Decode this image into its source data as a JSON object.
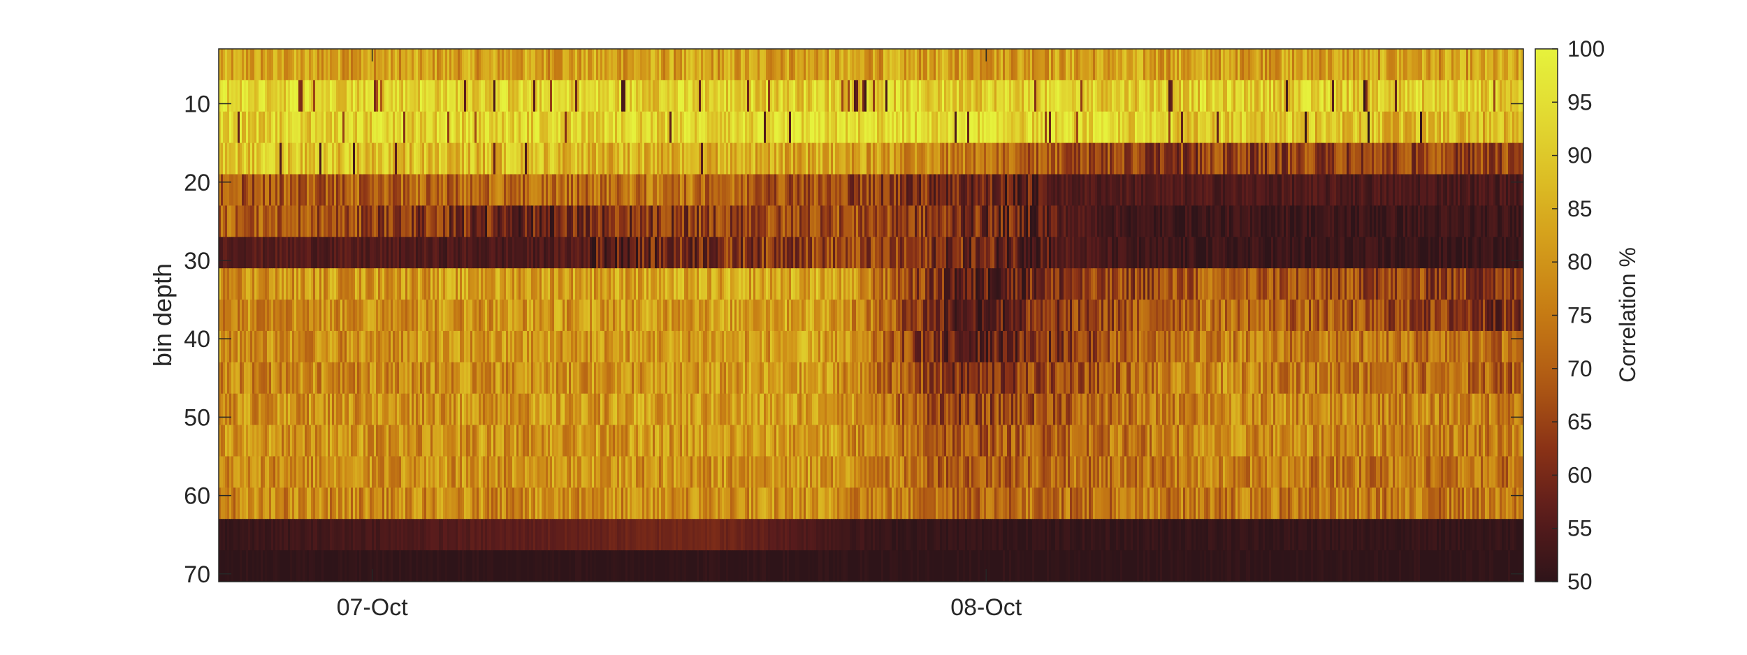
{
  "chart_data": {
    "type": "heatmap",
    "title": "",
    "xlabel": "",
    "ylabel": "bin depth",
    "x_ticks": [
      "07-Oct",
      "08-Oct"
    ],
    "x_range": [
      "06-Oct 18:00",
      "08-Oct 21:00"
    ],
    "y_range": [
      3,
      71
    ],
    "y_direction": "reversed",
    "y_ticks": [
      10,
      20,
      30,
      40,
      50,
      60,
      70
    ],
    "colorbar": {
      "label": "Correlation %",
      "range": [
        50,
        100
      ],
      "ticks": [
        50,
        55,
        60,
        65,
        70,
        75,
        80,
        85,
        90,
        95,
        100
      ],
      "colormap": [
        "#2e1419",
        "#5a1c1c",
        "#8a3216",
        "#b05a14",
        "#c57a14",
        "#d39a1a",
        "#dcbc24",
        "#e2da32",
        "#e6f23c"
      ]
    },
    "bands": [
      {
        "bins": [
          3,
          7
        ],
        "segments": [
          {
            "time": "06-Oct 18:00",
            "value": 82
          },
          {
            "time": "08-Oct 21:00",
            "value": 82
          }
        ]
      },
      {
        "bins": [
          7,
          11
        ],
        "segments": [
          {
            "time": "06-Oct 18:00",
            "value": 94
          },
          {
            "time": "07-Oct 12:00",
            "value": 92
          },
          {
            "time": "08-Oct 21:00",
            "value": 91
          }
        ]
      },
      {
        "bins": [
          11,
          15
        ],
        "segments": [
          {
            "time": "06-Oct 18:00",
            "value": 92
          },
          {
            "time": "08-Oct 00:00",
            "value": 94
          },
          {
            "time": "08-Oct 21:00",
            "value": 86
          }
        ]
      },
      {
        "bins": [
          15,
          19
        ],
        "segments": [
          {
            "time": "06-Oct 18:00",
            "value": 90
          },
          {
            "time": "07-Oct 18:00",
            "value": 84
          },
          {
            "time": "08-Oct 06:00",
            "value": 64
          },
          {
            "time": "08-Oct 21:00",
            "value": 66
          }
        ]
      },
      {
        "bins": [
          19,
          23
        ],
        "segments": [
          {
            "time": "06-Oct 18:00",
            "value": 68
          },
          {
            "time": "07-Oct 12:00",
            "value": 74
          },
          {
            "time": "08-Oct 03:00",
            "value": 55
          },
          {
            "time": "08-Oct 21:00",
            "value": 54
          }
        ]
      },
      {
        "bins": [
          23,
          27
        ],
        "segments": [
          {
            "time": "06-Oct 18:00",
            "value": 72
          },
          {
            "time": "07-Oct 06:00",
            "value": 58
          },
          {
            "time": "07-Oct 18:00",
            "value": 68
          },
          {
            "time": "08-Oct 06:00",
            "value": 52
          },
          {
            "time": "08-Oct 21:00",
            "value": 52
          }
        ]
      },
      {
        "bins": [
          27,
          31
        ],
        "segments": [
          {
            "time": "06-Oct 18:00",
            "value": 56
          },
          {
            "time": "07-Oct 06:00",
            "value": 54
          },
          {
            "time": "07-Oct 18:00",
            "value": 66
          },
          {
            "time": "08-Oct 06:00",
            "value": 52
          },
          {
            "time": "08-Oct 21:00",
            "value": 51
          }
        ]
      },
      {
        "bins": [
          31,
          35
        ],
        "segments": [
          {
            "time": "06-Oct 18:00",
            "value": 80
          },
          {
            "time": "07-Oct 18:00",
            "value": 84
          },
          {
            "time": "07-Oct 23:00",
            "value": 56
          },
          {
            "time": "08-Oct 09:00",
            "value": 70
          },
          {
            "time": "08-Oct 21:00",
            "value": 62
          }
        ]
      },
      {
        "bins": [
          35,
          39
        ],
        "segments": [
          {
            "time": "06-Oct 18:00",
            "value": 78
          },
          {
            "time": "07-Oct 18:00",
            "value": 83
          },
          {
            "time": "07-Oct 23:00",
            "value": 55
          },
          {
            "time": "08-Oct 09:00",
            "value": 74
          },
          {
            "time": "08-Oct 21:00",
            "value": 60
          }
        ]
      },
      {
        "bins": [
          39,
          43
        ],
        "segments": [
          {
            "time": "06-Oct 18:00",
            "value": 78
          },
          {
            "time": "07-Oct 18:00",
            "value": 82
          },
          {
            "time": "07-Oct 23:00",
            "value": 55
          },
          {
            "time": "08-Oct 09:00",
            "value": 76
          },
          {
            "time": "08-Oct 21:00",
            "value": 72
          }
        ]
      },
      {
        "bins": [
          43,
          47
        ],
        "segments": [
          {
            "time": "06-Oct 18:00",
            "value": 77
          },
          {
            "time": "07-Oct 18:00",
            "value": 81
          },
          {
            "time": "07-Oct 23:00",
            "value": 60
          },
          {
            "time": "08-Oct 09:00",
            "value": 78
          },
          {
            "time": "08-Oct 21:00",
            "value": 70
          }
        ]
      },
      {
        "bins": [
          47,
          51
        ],
        "segments": [
          {
            "time": "06-Oct 18:00",
            "value": 79
          },
          {
            "time": "07-Oct 18:00",
            "value": 82
          },
          {
            "time": "07-Oct 23:00",
            "value": 64
          },
          {
            "time": "08-Oct 09:00",
            "value": 78
          },
          {
            "time": "08-Oct 21:00",
            "value": 76
          }
        ]
      },
      {
        "bins": [
          51,
          55
        ],
        "segments": [
          {
            "time": "06-Oct 18:00",
            "value": 79
          },
          {
            "time": "07-Oct 18:00",
            "value": 81
          },
          {
            "time": "07-Oct 23:00",
            "value": 68
          },
          {
            "time": "08-Oct 09:00",
            "value": 78
          },
          {
            "time": "08-Oct 21:00",
            "value": 76
          }
        ]
      },
      {
        "bins": [
          55,
          59
        ],
        "segments": [
          {
            "time": "06-Oct 18:00",
            "value": 78
          },
          {
            "time": "07-Oct 18:00",
            "value": 80
          },
          {
            "time": "07-Oct 23:00",
            "value": 70
          },
          {
            "time": "08-Oct 09:00",
            "value": 76
          },
          {
            "time": "08-Oct 21:00",
            "value": 74
          }
        ]
      },
      {
        "bins": [
          59,
          63
        ],
        "segments": [
          {
            "time": "06-Oct 18:00",
            "value": 77
          },
          {
            "time": "07-Oct 18:00",
            "value": 79
          },
          {
            "time": "07-Oct 23:00",
            "value": 72
          },
          {
            "time": "08-Oct 09:00",
            "value": 75
          },
          {
            "time": "08-Oct 21:00",
            "value": 74
          }
        ]
      },
      {
        "bins": [
          63,
          67
        ],
        "segments": [
          {
            "time": "06-Oct 18:00",
            "value": 51
          },
          {
            "time": "07-Oct 13:00",
            "value": 60
          },
          {
            "time": "07-Oct 20:00",
            "value": 51
          },
          {
            "time": "08-Oct 21:00",
            "value": 51
          }
        ]
      },
      {
        "bins": [
          67,
          71
        ],
        "segments": [
          {
            "time": "06-Oct 18:00",
            "value": 50
          },
          {
            "time": "08-Oct 21:00",
            "value": 50
          }
        ]
      }
    ],
    "grid": false,
    "legend": "none"
  }
}
